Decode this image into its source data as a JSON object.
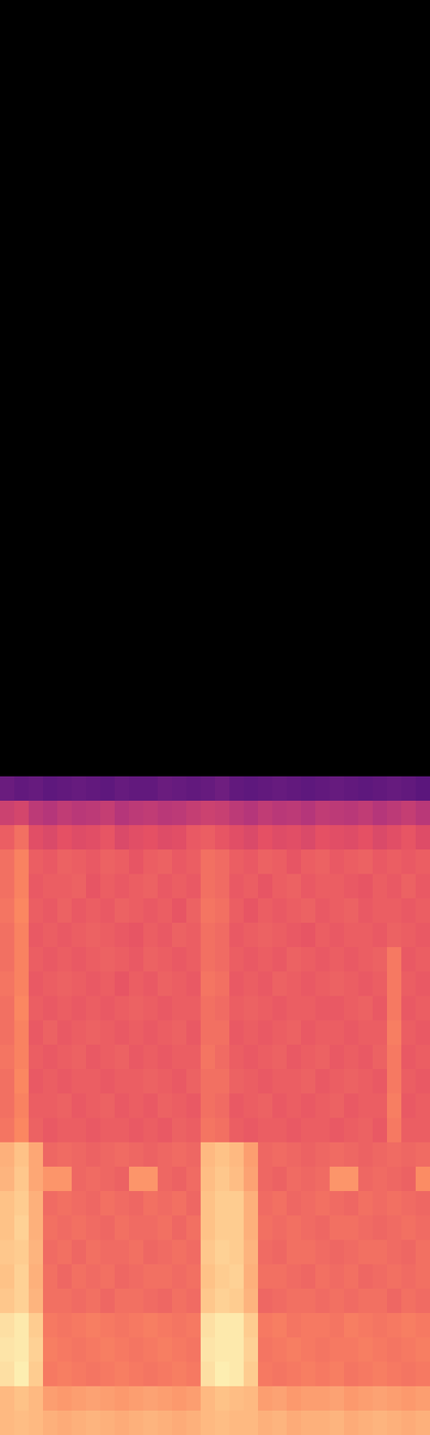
{
  "chart_data": {
    "type": "heatmap",
    "tick_labels": false,
    "color_range": [
      0,
      100
    ],
    "cells": [
      [
        32,
        30,
        31,
        29,
        30,
        31,
        30,
        29,
        31,
        30,
        30,
        32,
        31,
        30,
        31,
        33,
        30,
        29,
        30,
        31,
        30,
        29,
        30,
        31,
        30,
        29,
        30,
        31,
        30,
        28
      ],
      [
        56,
        58,
        52,
        50,
        53,
        51,
        52,
        54,
        50,
        52,
        53,
        51,
        52,
        54,
        56,
        55,
        52,
        50,
        53,
        51,
        52,
        50,
        53,
        52,
        51,
        53,
        50,
        52,
        54,
        51
      ],
      [
        66,
        70,
        62,
        60,
        63,
        61,
        62,
        64,
        60,
        62,
        63,
        61,
        62,
        65,
        66,
        64,
        62,
        60,
        63,
        61,
        62,
        60,
        63,
        62,
        61,
        63,
        60,
        62,
        64,
        61
      ],
      [
        70,
        74,
        66,
        65,
        67,
        66,
        65,
        67,
        66,
        64,
        66,
        67,
        65,
        66,
        70,
        69,
        66,
        65,
        67,
        66,
        64,
        66,
        67,
        65,
        66,
        67,
        65,
        66,
        65,
        66
      ],
      [
        70,
        74,
        65,
        66,
        66,
        67,
        64,
        66,
        65,
        66,
        67,
        65,
        66,
        65,
        70,
        69,
        65,
        66,
        64,
        66,
        67,
        65,
        66,
        66,
        65,
        64,
        66,
        65,
        67,
        65
      ],
      [
        71,
        75,
        66,
        65,
        67,
        65,
        66,
        65,
        67,
        66,
        65,
        66,
        64,
        67,
        71,
        70,
        66,
        64,
        66,
        65,
        66,
        67,
        65,
        66,
        67,
        65,
        66,
        66,
        65,
        66
      ],
      [
        70,
        74,
        65,
        66,
        65,
        66,
        67,
        66,
        65,
        64,
        66,
        65,
        67,
        66,
        70,
        69,
        65,
        66,
        67,
        66,
        65,
        64,
        66,
        65,
        66,
        66,
        65,
        67,
        66,
        65
      ],
      [
        70,
        74,
        66,
        65,
        66,
        65,
        66,
        67,
        66,
        65,
        67,
        66,
        65,
        66,
        70,
        69,
        66,
        65,
        66,
        65,
        67,
        66,
        65,
        66,
        65,
        66,
        67,
        72,
        65,
        66
      ],
      [
        71,
        74,
        65,
        66,
        67,
        66,
        65,
        66,
        64,
        66,
        65,
        67,
        66,
        65,
        71,
        70,
        65,
        66,
        65,
        67,
        66,
        65,
        66,
        67,
        66,
        65,
        66,
        72,
        66,
        65
      ],
      [
        70,
        75,
        66,
        65,
        66,
        65,
        66,
        65,
        66,
        67,
        66,
        65,
        66,
        66,
        70,
        69,
        66,
        67,
        66,
        65,
        66,
        66,
        65,
        65,
        66,
        67,
        65,
        72,
        65,
        66
      ],
      [
        70,
        74,
        65,
        67,
        65,
        66,
        67,
        66,
        65,
        66,
        65,
        66,
        67,
        65,
        70,
        70,
        65,
        66,
        65,
        66,
        67,
        65,
        66,
        66,
        65,
        66,
        66,
        73,
        66,
        65
      ],
      [
        71,
        74,
        66,
        65,
        66,
        67,
        65,
        66,
        67,
        65,
        66,
        65,
        66,
        66,
        71,
        69,
        66,
        65,
        66,
        67,
        65,
        66,
        67,
        65,
        66,
        65,
        67,
        72,
        65,
        66
      ],
      [
        70,
        75,
        65,
        66,
        65,
        66,
        66,
        65,
        66,
        66,
        67,
        66,
        65,
        67,
        70,
        70,
        67,
        66,
        65,
        66,
        66,
        67,
        65,
        66,
        67,
        66,
        65,
        72,
        66,
        65
      ],
      [
        70,
        74,
        66,
        66,
        67,
        65,
        66,
        67,
        65,
        66,
        65,
        67,
        66,
        65,
        70,
        69,
        65,
        66,
        67,
        65,
        66,
        65,
        66,
        67,
        65,
        66,
        66,
        73,
        65,
        66
      ],
      [
        71,
        75,
        67,
        65,
        66,
        66,
        65,
        66,
        66,
        65,
        66,
        65,
        67,
        66,
        71,
        70,
        66,
        65,
        66,
        66,
        65,
        66,
        66,
        65,
        66,
        67,
        65,
        72,
        66,
        66
      ],
      [
        84,
        88,
        82,
        68,
        69,
        68,
        67,
        68,
        69,
        68,
        67,
        68,
        69,
        68,
        86,
        88,
        86,
        80,
        68,
        69,
        68,
        67,
        68,
        69,
        68,
        67,
        68,
        69,
        68,
        69
      ],
      [
        85,
        89,
        82,
        78,
        78,
        68,
        69,
        68,
        67,
        78,
        78,
        68,
        67,
        69,
        87,
        89,
        87,
        81,
        68,
        67,
        69,
        68,
        69,
        78,
        78,
        68,
        69,
        68,
        67,
        76
      ],
      [
        88,
        90,
        84,
        69,
        70,
        69,
        68,
        70,
        69,
        68,
        70,
        69,
        70,
        68,
        88,
        90,
        90,
        84,
        69,
        70,
        68,
        69,
        70,
        69,
        68,
        70,
        69,
        70,
        69,
        68
      ],
      [
        88,
        91,
        84,
        70,
        69,
        70,
        69,
        68,
        70,
        69,
        69,
        70,
        68,
        70,
        88,
        90,
        90,
        84,
        70,
        69,
        70,
        69,
        68,
        70,
        70,
        69,
        68,
        69,
        70,
        69
      ],
      [
        89,
        90,
        85,
        69,
        70,
        68,
        70,
        69,
        69,
        70,
        68,
        69,
        70,
        69,
        89,
        91,
        90,
        85,
        69,
        68,
        70,
        70,
        69,
        68,
        69,
        70,
        70,
        69,
        68,
        70
      ],
      [
        88,
        91,
        84,
        70,
        68,
        70,
        69,
        70,
        68,
        69,
        70,
        70,
        69,
        70,
        88,
        90,
        91,
        84,
        70,
        70,
        69,
        68,
        70,
        69,
        70,
        68,
        69,
        70,
        69,
        70
      ],
      [
        89,
        91,
        85,
        70,
        70,
        69,
        70,
        68,
        70,
        70,
        69,
        68,
        70,
        69,
        89,
        91,
        90,
        85,
        68,
        69,
        70,
        70,
        69,
        70,
        69,
        70,
        70,
        68,
        70,
        69
      ],
      [
        94,
        96,
        90,
        72,
        71,
        72,
        73,
        72,
        71,
        72,
        73,
        72,
        71,
        72,
        94,
        96,
        96,
        90,
        72,
        73,
        71,
        72,
        72,
        71,
        73,
        72,
        71,
        72,
        73,
        72
      ],
      [
        95,
        96,
        91,
        73,
        72,
        71,
        72,
        73,
        72,
        71,
        72,
        73,
        72,
        71,
        95,
        96,
        96,
        91,
        71,
        72,
        73,
        72,
        71,
        72,
        72,
        73,
        72,
        71,
        72,
        73
      ],
      [
        94,
        97,
        90,
        72,
        73,
        72,
        71,
        72,
        73,
        72,
        71,
        72,
        73,
        72,
        94,
        97,
        96,
        90,
        72,
        71,
        72,
        73,
        72,
        73,
        71,
        72,
        73,
        72,
        71,
        72
      ],
      [
        86,
        88,
        86,
        80,
        79,
        80,
        81,
        80,
        79,
        80,
        81,
        80,
        79,
        80,
        86,
        88,
        87,
        86,
        80,
        81,
        79,
        80,
        80,
        81,
        79,
        80,
        81,
        80,
        79,
        80
      ],
      [
        86,
        87,
        86,
        84,
        83,
        84,
        85,
        84,
        83,
        84,
        85,
        84,
        83,
        84,
        86,
        87,
        86,
        86,
        84,
        85,
        83,
        84,
        84,
        85,
        83,
        84,
        85,
        84,
        83,
        84
      ]
    ]
  }
}
